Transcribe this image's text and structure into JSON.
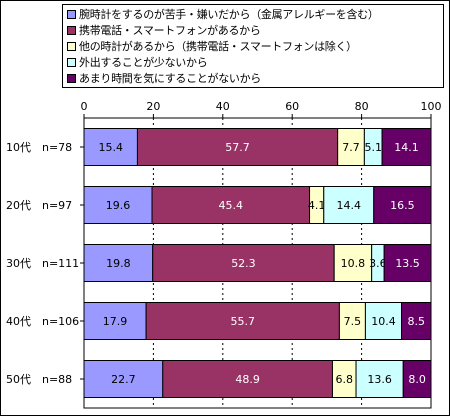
{
  "chart_data": {
    "type": "bar",
    "stacked": true,
    "orientation": "horizontal",
    "percent_scale": true,
    "xlim": [
      0,
      100
    ],
    "xticks": [
      0,
      20,
      40,
      60,
      80,
      100
    ],
    "grid": "dashed-vertical",
    "legend_position": "top",
    "categories": [
      "10代　n=78",
      "20代　n=97",
      "30代　n=111",
      "40代　n=106",
      "50代　n=88"
    ],
    "series": [
      {
        "name": "腕時計をするのが苦手・嫌いだから（金属アレルギーを含む）",
        "color": "#9999ff",
        "values": [
          15.4,
          19.6,
          19.8,
          17.9,
          22.7
        ]
      },
      {
        "name": "携帯電話・スマートフォンがあるから",
        "color": "#993366",
        "values": [
          57.7,
          45.4,
          52.3,
          55.7,
          48.9
        ]
      },
      {
        "name": "他の時計があるから（携帯電話・スマートフォンは除く）",
        "color": "#ffffcc",
        "values": [
          7.7,
          4.1,
          10.8,
          7.5,
          6.8
        ]
      },
      {
        "name": "外出することが少ないから",
        "color": "#ccffff",
        "values": [
          5.1,
          14.4,
          3.6,
          10.4,
          13.6
        ]
      },
      {
        "name": "あまり時間を気にすることがないから",
        "color": "#660066",
        "values": [
          14.1,
          16.5,
          13.5,
          8.5,
          8.0
        ]
      }
    ]
  }
}
